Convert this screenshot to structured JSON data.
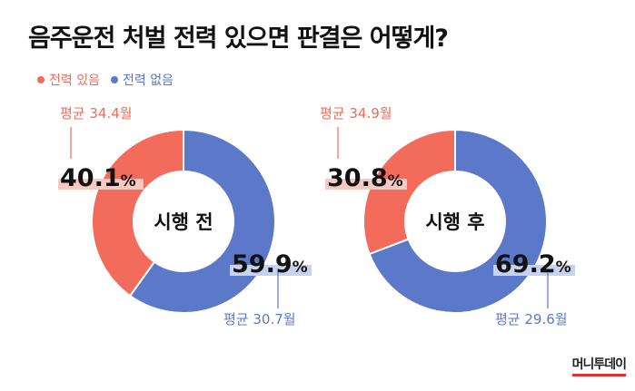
{
  "title": "음주운전 처벌 전력 있으면 판결은 어떻게?",
  "legend": [
    {
      "label": "전력 있음",
      "color": "#f26b5b"
    },
    {
      "label": "전력 없음",
      "color": "#5b79c8"
    }
  ],
  "brand": "머니투데이",
  "chart_data": [
    {
      "type": "pie",
      "center_label": "시행 전",
      "slices": [
        {
          "series": "전력 있음",
          "value": 40.1,
          "value_label": "40.1",
          "unit": "%",
          "avg_label": "평균 34.4월",
          "color": "#f26b5b"
        },
        {
          "series": "전력 없음",
          "value": 59.9,
          "value_label": "59.9",
          "unit": "%",
          "avg_label": "평균 30.7월",
          "color": "#5b79c8"
        }
      ]
    },
    {
      "type": "pie",
      "center_label": "시행 후",
      "slices": [
        {
          "series": "전력 있음",
          "value": 30.8,
          "value_label": "30.8",
          "unit": "%",
          "avg_label": "평균 34.9월",
          "color": "#f26b5b"
        },
        {
          "series": "전력 없음",
          "value": 69.2,
          "value_label": "69.2",
          "unit": "%",
          "avg_label": "평균 29.6월",
          "color": "#5b79c8"
        }
      ]
    }
  ]
}
